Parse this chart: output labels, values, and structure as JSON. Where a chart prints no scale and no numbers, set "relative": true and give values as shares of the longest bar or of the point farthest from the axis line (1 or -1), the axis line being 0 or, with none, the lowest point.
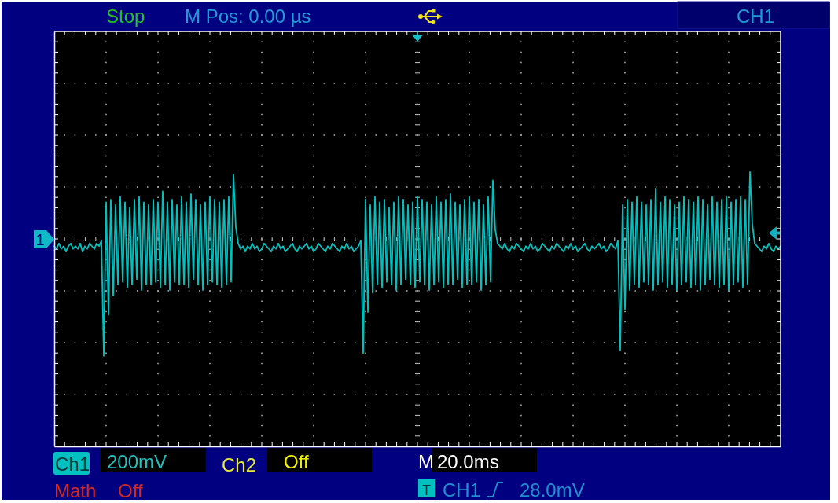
{
  "chart_data": {
    "type": "line",
    "relative": true,
    "grid": true,
    "categories": [
      null,
      null,
      null,
      null,
      null,
      null,
      null,
      null,
      null,
      null,
      null,
      null,
      null,
      null,
      null,
      null,
      null,
      null,
      null,
      null,
      null,
      null,
      null,
      null,
      null,
      null,
      null,
      null,
      null,
      null,
      null,
      null,
      null,
      null,
      null,
      null,
      null,
      null,
      null,
      null,
      null,
      null,
      null,
      null,
      null,
      null,
      null,
      null,
      null,
      null,
      null,
      null,
      null,
      null,
      null,
      null,
      null,
      null,
      null,
      null,
      null,
      null,
      null,
      null,
      null,
      null,
      null,
      null,
      null,
      null,
      null,
      null,
      null,
      null,
      null,
      null,
      null,
      null,
      null,
      null,
      null,
      null,
      null,
      null,
      null,
      null,
      null,
      null,
      null,
      null,
      null,
      null,
      null,
      null,
      null,
      null,
      null,
      null,
      null,
      null,
      null,
      null,
      null,
      null,
      null,
      null,
      null,
      null,
      null,
      null,
      null,
      null,
      null,
      null,
      null,
      null,
      null,
      null,
      null,
      null,
      null,
      null,
      null,
      null,
      null,
      null,
      null,
      null,
      null,
      null,
      null,
      null,
      null,
      null,
      null,
      null,
      null,
      null,
      null,
      null,
      null,
      null,
      null,
      null,
      null,
      null,
      null,
      null,
      null,
      null,
      null,
      null,
      null,
      null,
      null,
      null,
      null,
      null,
      null,
      null,
      null,
      null,
      null,
      null,
      null,
      null,
      null,
      null,
      null,
      null,
      null,
      null,
      null,
      null,
      null,
      null,
      null,
      null,
      null,
      null,
      null,
      null,
      null,
      null,
      null,
      null,
      null,
      null,
      null,
      null,
      null,
      null,
      null,
      null,
      null,
      null,
      null,
      null,
      null,
      null,
      null,
      null,
      null,
      null,
      null,
      null,
      null,
      null,
      null,
      null,
      null,
      null,
      null,
      null,
      null,
      null,
      null,
      null,
      null,
      null,
      null,
      null,
      null,
      null,
      null,
      null,
      null,
      null,
      null,
      null,
      null,
      null,
      null,
      null,
      null,
      null,
      null,
      null,
      null,
      null,
      null,
      null,
      null,
      null,
      null,
      null,
      null,
      null,
      null,
      null,
      null,
      null,
      null,
      null,
      null,
      null,
      null,
      null,
      null,
      null,
      null,
      null,
      null,
      null,
      null,
      null,
      null,
      null,
      null,
      null,
      null,
      null,
      null,
      null,
      null,
      null,
      null,
      null,
      null,
      null,
      null,
      null,
      null,
      null,
      null,
      null,
      null,
      null,
      null,
      null,
      null,
      null,
      null,
      null,
      null,
      null,
      null,
      null,
      null,
      null,
      null,
      null,
      null,
      null,
      null,
      null,
      null,
      null,
      null
    ],
    "series": [
      {
        "color": "#00c0c0",
        "values": [
          0.73,
          0.72,
          0.74,
          0.72,
          0.73,
          0.71,
          0.73,
          0.74,
          0.72,
          0.73,
          0.72,
          0.74,
          0.71,
          0.73,
          0.72,
          0.74,
          0.73,
          0.72,
          0.74,
          0.73,
          0.75,
          0.33,
          0.89,
          0.48,
          0.9,
          0.55,
          0.88,
          0.59,
          0.91,
          0.6,
          0.89,
          0.58,
          0.87,
          0.59,
          0.9,
          0.61,
          0.91,
          0.57,
          0.89,
          0.59,
          0.88,
          0.59,
          0.9,
          0.6,
          0.89,
          0.58,
          0.93,
          0.59,
          0.89,
          0.57,
          0.9,
          0.6,
          0.88,
          0.59,
          0.91,
          0.59,
          0.89,
          0.58,
          0.92,
          0.61,
          0.9,
          0.59,
          0.88,
          0.57,
          0.89,
          0.59,
          0.91,
          0.6,
          0.9,
          0.59,
          0.89,
          0.58,
          0.9,
          0.59,
          0.91,
          0.6,
          0.99,
          0.8,
          0.74,
          0.72,
          0.73,
          0.71,
          0.73,
          0.72,
          0.74,
          0.72,
          0.73,
          0.71,
          0.72,
          0.74,
          0.73,
          0.72,
          0.71,
          0.73,
          0.72,
          0.74,
          0.72,
          0.73,
          0.71,
          0.72,
          0.73,
          0.74,
          0.72,
          0.71,
          0.73,
          0.72,
          0.73,
          0.74,
          0.72,
          0.73,
          0.71,
          0.72,
          0.74,
          0.73,
          0.72,
          0.71,
          0.73,
          0.72,
          0.74,
          0.73,
          0.72,
          0.71,
          0.73,
          0.72,
          0.74,
          0.72,
          0.73,
          0.71,
          0.72,
          0.73,
          0.75,
          0.34,
          0.9,
          0.49,
          0.88,
          0.56,
          0.91,
          0.59,
          0.89,
          0.58,
          0.9,
          0.6,
          0.87,
          0.59,
          0.89,
          0.57,
          0.91,
          0.59,
          0.9,
          0.61,
          0.88,
          0.59,
          0.89,
          0.58,
          0.91,
          0.6,
          0.9,
          0.59,
          0.89,
          0.57,
          0.88,
          0.59,
          0.91,
          0.6,
          0.89,
          0.58,
          0.9,
          0.59,
          0.92,
          0.59,
          0.89,
          0.61,
          0.88,
          0.58,
          0.9,
          0.59,
          0.91,
          0.59,
          0.89,
          0.6,
          0.9,
          0.57,
          0.88,
          0.59,
          0.91,
          0.6,
          0.97,
          0.79,
          0.74,
          0.73,
          0.72,
          0.74,
          0.72,
          0.71,
          0.73,
          0.72,
          0.74,
          0.73,
          0.72,
          0.71,
          0.73,
          0.72,
          0.74,
          0.72,
          0.73,
          0.71,
          0.72,
          0.74,
          0.73,
          0.72,
          0.71,
          0.73,
          0.72,
          0.74,
          0.73,
          0.72,
          0.71,
          0.73,
          0.72,
          0.74,
          0.72,
          0.73,
          0.71,
          0.72,
          0.73,
          0.74,
          0.72,
          0.71,
          0.73,
          0.72,
          0.73,
          0.74,
          0.72,
          0.73,
          0.71,
          0.72,
          0.74,
          0.73,
          0.72,
          0.75,
          0.35,
          0.88,
          0.5,
          0.9,
          0.57,
          0.89,
          0.59,
          0.91,
          0.58,
          0.89,
          0.6,
          0.88,
          0.59,
          0.9,
          0.57,
          0.94,
          0.59,
          0.89,
          0.6,
          0.91,
          0.58,
          0.9,
          0.59,
          0.88,
          0.57,
          0.89,
          0.59,
          0.91,
          0.6,
          0.9,
          0.58,
          0.89,
          0.59,
          0.91,
          0.57,
          0.9,
          0.59,
          0.88,
          0.61,
          0.91,
          0.59,
          0.89,
          0.58,
          0.9,
          0.59,
          0.91,
          0.57,
          0.89,
          0.59,
          0.9,
          0.6,
          0.91,
          0.58,
          0.9,
          0.59,
          1.0,
          0.81,
          0.74,
          0.73,
          0.72,
          0.71,
          0.73,
          0.72,
          0.74,
          0.72,
          0.71,
          0.73,
          0.72,
          0.73
        ]
      }
    ],
    "annotations": [
      "Stop",
      "M Pos: 0.00 µs",
      "CH1",
      "Ch1",
      "200mV",
      "Ch2",
      "Off",
      "M",
      "20.0ms",
      "Math",
      "Off",
      "T",
      "CH1",
      "28.0mV",
      "1"
    ]
  }
}
